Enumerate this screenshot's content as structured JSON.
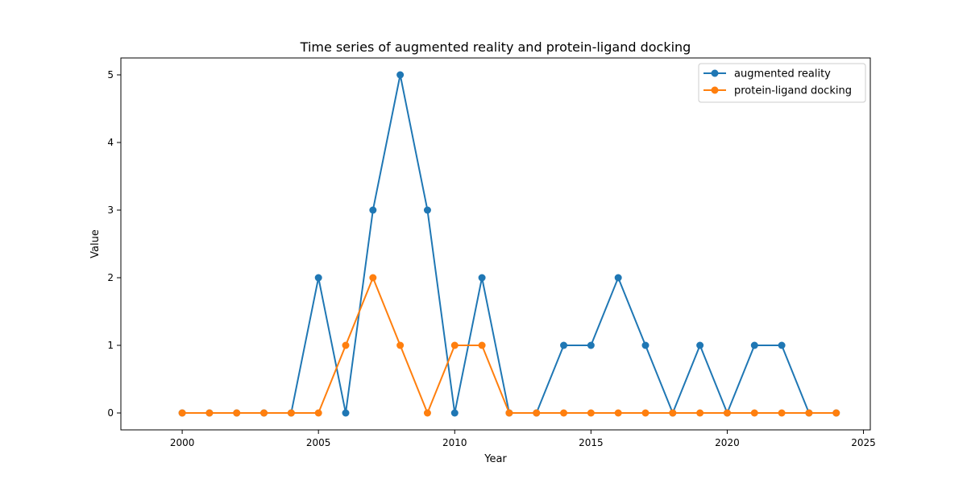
{
  "chart_data": {
    "type": "line",
    "title": "Time series of augmented reality and protein-ligand docking",
    "xlabel": "Year",
    "ylabel": "Value",
    "x": [
      2000,
      2001,
      2002,
      2003,
      2004,
      2005,
      2006,
      2007,
      2008,
      2009,
      2010,
      2011,
      2012,
      2013,
      2014,
      2015,
      2016,
      2017,
      2018,
      2019,
      2020,
      2021,
      2022,
      2023,
      2024
    ],
    "xlim": [
      1997.75,
      2025.25
    ],
    "ylim": [
      -0.25,
      5.25
    ],
    "xticks": [
      2000,
      2005,
      2010,
      2015,
      2020,
      2025
    ],
    "yticks": [
      0,
      1,
      2,
      3,
      4,
      5
    ],
    "legend_position": "top-right",
    "grid": false,
    "series": [
      {
        "name": "augmented reality",
        "color": "#1f77b4",
        "marker": "circle",
        "values": [
          0,
          0,
          0,
          0,
          0,
          2,
          0,
          3,
          5,
          3,
          0,
          2,
          0,
          0,
          1,
          1,
          2,
          1,
          0,
          1,
          0,
          1,
          1,
          0,
          0
        ]
      },
      {
        "name": "protein-ligand docking",
        "color": "#ff7f0e",
        "marker": "circle",
        "values": [
          0,
          0,
          0,
          0,
          0,
          0,
          1,
          2,
          1,
          0,
          1,
          1,
          0,
          0,
          0,
          0,
          0,
          0,
          0,
          0,
          0,
          0,
          0,
          0,
          0
        ]
      }
    ]
  }
}
